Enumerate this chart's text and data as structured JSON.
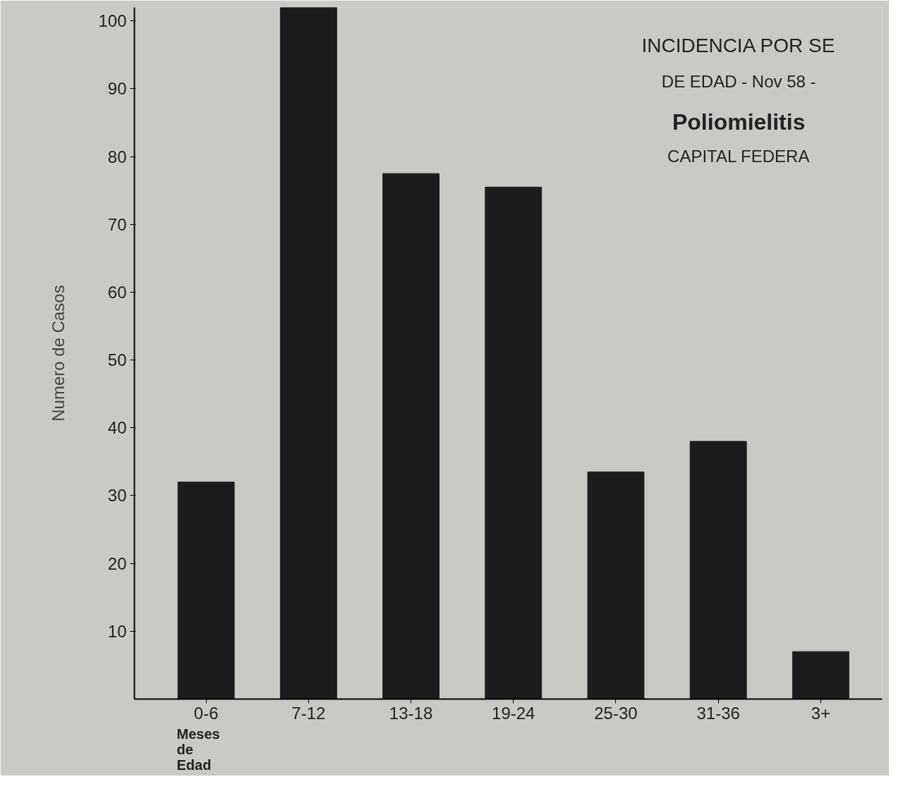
{
  "chart_data": {
    "type": "bar",
    "title": "INCIDENCIA POR SE",
    "subtitle": "DE EDAD - Nov 58 -",
    "annotations": [
      "Poliomielitis",
      "CAPITAL FEDERA"
    ],
    "xlabel": "Meses de Edad",
    "ylabel": "Numero de Casos",
    "categories": [
      "0-6",
      "7-12",
      "13-18",
      "19-24",
      "25-30",
      "31-36",
      "3+"
    ],
    "values": [
      32,
      102,
      77.5,
      75.5,
      33.5,
      38,
      7
    ],
    "color": "#1c1c1c",
    "ylim": [
      0,
      102
    ],
    "yticks": [
      {
        "value": 10,
        "label": "10"
      },
      20,
      30,
      40,
      50,
      60,
      70,
      80,
      90,
      100
    ],
    "grid": false
  }
}
